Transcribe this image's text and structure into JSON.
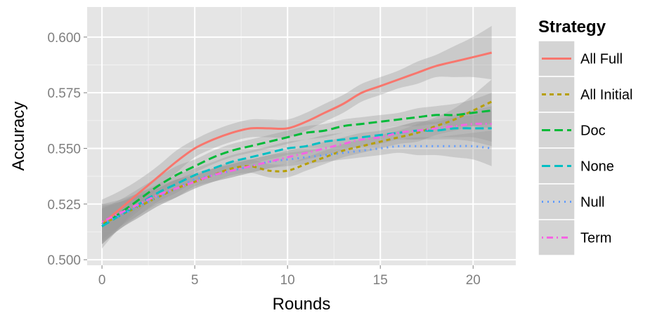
{
  "chart_data": {
    "type": "line",
    "title": "",
    "xlabel": "Rounds",
    "ylabel": "Accuracy",
    "xlim": [
      -0.8,
      22.3
    ],
    "ylim": [
      0.4975,
      0.6135
    ],
    "x_ticks": [
      0,
      5,
      10,
      15,
      20
    ],
    "y_ticks": [
      0.5,
      0.525,
      0.55,
      0.575,
      0.6
    ],
    "x_tick_labels": [
      "0",
      "5",
      "10",
      "15",
      "20"
    ],
    "y_tick_labels": [
      "0.500",
      "0.525",
      "0.550",
      "0.575",
      "0.600"
    ],
    "grid": true,
    "background": "#e5e5e5",
    "legend": {
      "title": "Strategy",
      "position": "right"
    },
    "x": [
      0,
      1,
      2,
      3,
      4,
      5,
      6,
      7,
      8,
      9,
      10,
      11,
      12,
      13,
      14,
      15,
      16,
      17,
      18,
      19,
      20,
      21
    ],
    "series": [
      {
        "name": "All Full",
        "color": "#f8766d",
        "dash": "solid",
        "values": [
          0.516,
          0.523,
          0.53,
          0.537,
          0.544,
          0.55,
          0.554,
          0.557,
          0.559,
          0.559,
          0.559,
          0.562,
          0.566,
          0.57,
          0.575,
          0.578,
          0.581,
          0.584,
          0.587,
          0.589,
          0.591,
          0.593
        ],
        "band_halfwidth": [
          0.011,
          0.008,
          0.006,
          0.005,
          0.005,
          0.004,
          0.004,
          0.004,
          0.004,
          0.004,
          0.004,
          0.004,
          0.004,
          0.004,
          0.004,
          0.004,
          0.004,
          0.005,
          0.005,
          0.007,
          0.009,
          0.012
        ]
      },
      {
        "name": "All Initial",
        "color": "#b79f00",
        "dash": "dashed",
        "values": [
          0.516,
          0.52,
          0.524,
          0.528,
          0.532,
          0.535,
          0.538,
          0.541,
          0.542,
          0.54,
          0.54,
          0.543,
          0.546,
          0.549,
          0.551,
          0.553,
          0.555,
          0.557,
          0.56,
          0.563,
          0.567,
          0.571
        ],
        "band_halfwidth": [
          0.009,
          0.006,
          0.005,
          0.004,
          0.004,
          0.003,
          0.003,
          0.003,
          0.003,
          0.003,
          0.003,
          0.003,
          0.003,
          0.003,
          0.003,
          0.003,
          0.003,
          0.004,
          0.004,
          0.005,
          0.007,
          0.01
        ]
      },
      {
        "name": "Doc",
        "color": "#00ba38",
        "dash": "longdash",
        "values": [
          0.515,
          0.521,
          0.527,
          0.533,
          0.538,
          0.542,
          0.546,
          0.549,
          0.551,
          0.553,
          0.555,
          0.557,
          0.558,
          0.56,
          0.561,
          0.562,
          0.563,
          0.564,
          0.565,
          0.565,
          0.566,
          0.567
        ],
        "band_halfwidth": [
          0.008,
          0.006,
          0.005,
          0.004,
          0.004,
          0.003,
          0.003,
          0.003,
          0.003,
          0.003,
          0.003,
          0.003,
          0.003,
          0.003,
          0.003,
          0.003,
          0.003,
          0.004,
          0.004,
          0.005,
          0.006,
          0.008
        ]
      },
      {
        "name": "None",
        "color": "#00bfc4",
        "dash": "longdash",
        "values": [
          0.515,
          0.52,
          0.525,
          0.53,
          0.534,
          0.538,
          0.541,
          0.544,
          0.546,
          0.548,
          0.55,
          0.551,
          0.553,
          0.554,
          0.555,
          0.556,
          0.557,
          0.558,
          0.558,
          0.559,
          0.559,
          0.559
        ],
        "band_halfwidth": [
          0.008,
          0.006,
          0.005,
          0.004,
          0.004,
          0.003,
          0.003,
          0.003,
          0.003,
          0.003,
          0.003,
          0.003,
          0.003,
          0.003,
          0.003,
          0.003,
          0.003,
          0.004,
          0.004,
          0.005,
          0.006,
          0.008
        ]
      },
      {
        "name": "Null",
        "color": "#619cff",
        "dash": "dotted",
        "values": [
          0.516,
          0.52,
          0.524,
          0.528,
          0.532,
          0.536,
          0.538,
          0.54,
          0.542,
          0.544,
          0.545,
          0.546,
          0.547,
          0.548,
          0.549,
          0.55,
          0.551,
          0.551,
          0.551,
          0.551,
          0.551,
          0.55
        ],
        "band_halfwidth": [
          0.008,
          0.006,
          0.005,
          0.004,
          0.004,
          0.003,
          0.003,
          0.003,
          0.003,
          0.003,
          0.003,
          0.003,
          0.003,
          0.003,
          0.003,
          0.003,
          0.003,
          0.004,
          0.004,
          0.005,
          0.006,
          0.008
        ]
      },
      {
        "name": "Term",
        "color": "#f564e3",
        "dash": "dotdash",
        "values": [
          0.517,
          0.521,
          0.525,
          0.529,
          0.532,
          0.535,
          0.538,
          0.54,
          0.542,
          0.544,
          0.546,
          0.548,
          0.55,
          0.552,
          0.554,
          0.555,
          0.557,
          0.558,
          0.559,
          0.56,
          0.561,
          0.561
        ],
        "band_halfwidth": [
          0.008,
          0.006,
          0.005,
          0.004,
          0.004,
          0.003,
          0.003,
          0.003,
          0.003,
          0.003,
          0.003,
          0.003,
          0.003,
          0.003,
          0.003,
          0.003,
          0.003,
          0.004,
          0.004,
          0.005,
          0.006,
          0.008
        ]
      }
    ]
  }
}
